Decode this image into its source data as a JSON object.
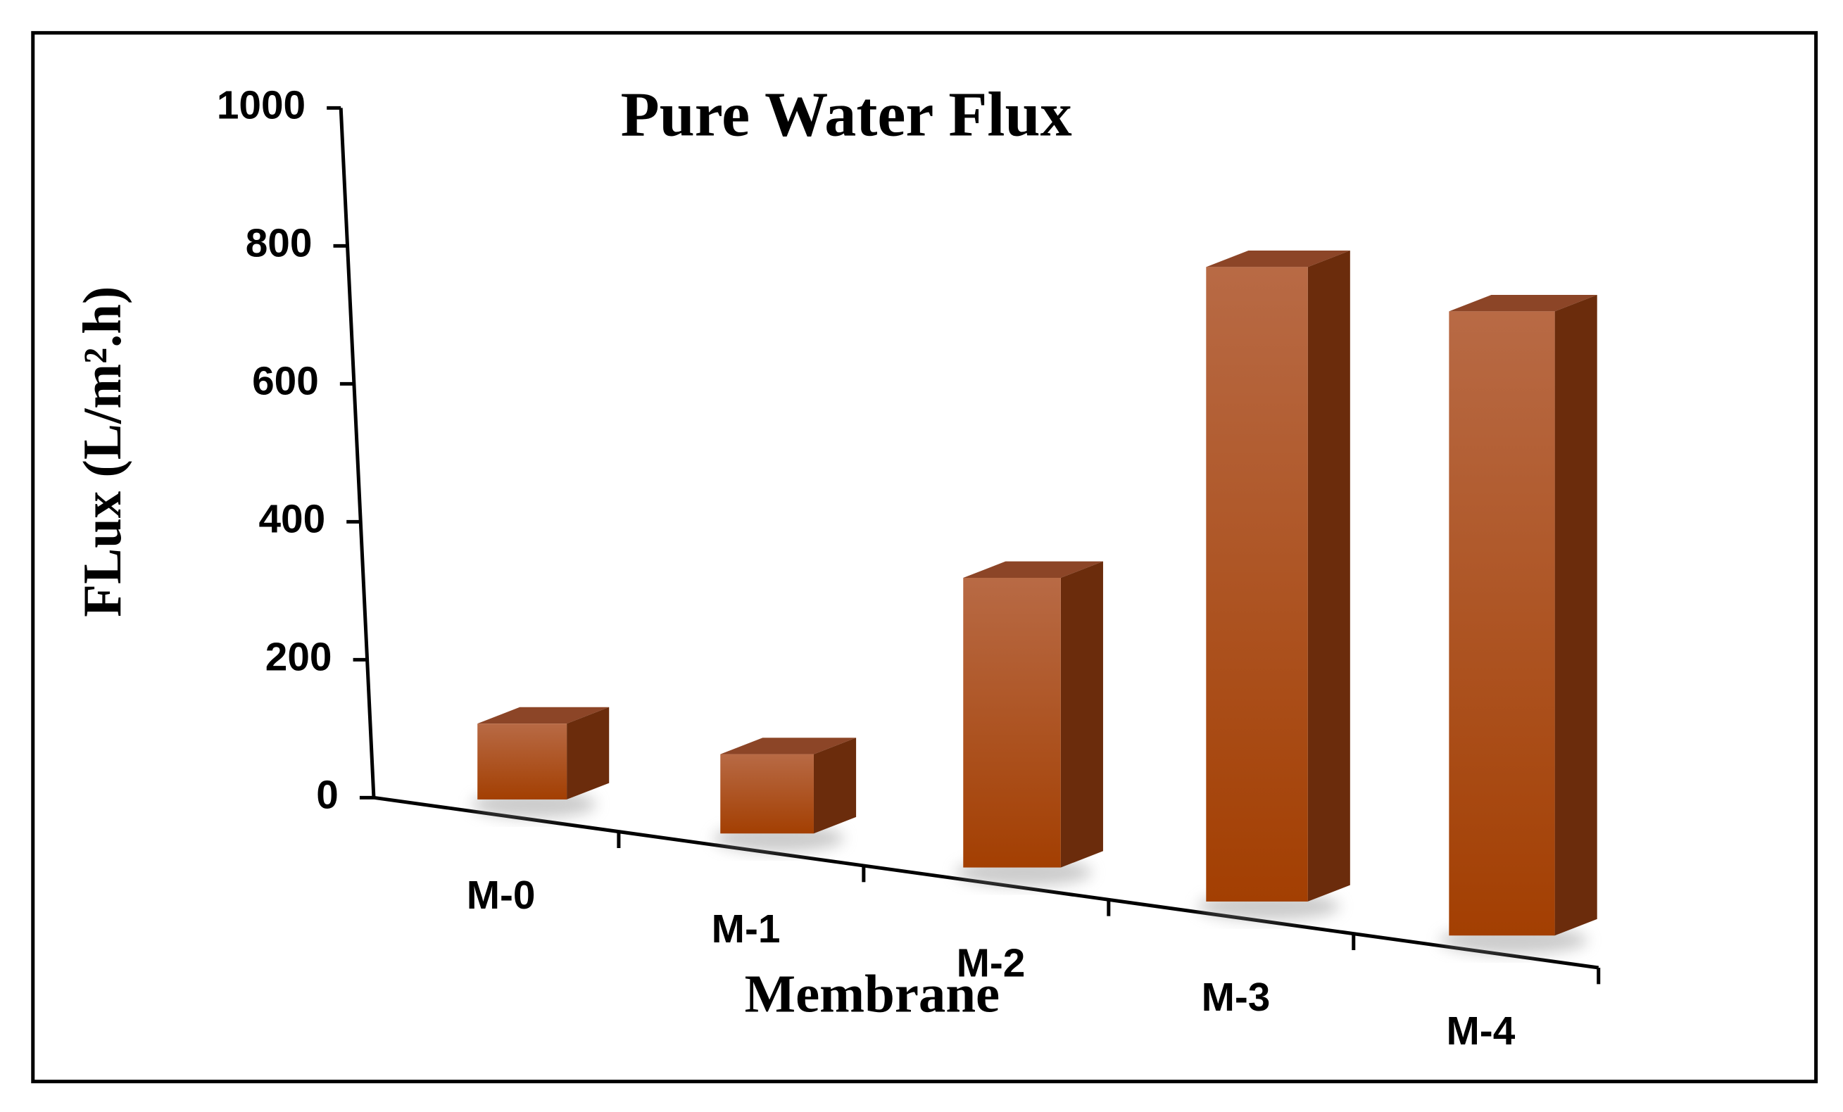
{
  "chart_data": {
    "type": "bar3d",
    "title": "Pure Water Flux",
    "x_label": "Membrane",
    "y_label": "FLux  (L/m².h)",
    "categories": [
      "M-0",
      "M-1",
      "M-2",
      "M-3",
      "M-4"
    ],
    "values": [
      110,
      115,
      420,
      920,
      905
    ],
    "color": "#a84a14",
    "ylim": [
      0,
      1000
    ],
    "yticks": [
      0,
      200,
      400,
      600,
      800,
      1000
    ]
  }
}
